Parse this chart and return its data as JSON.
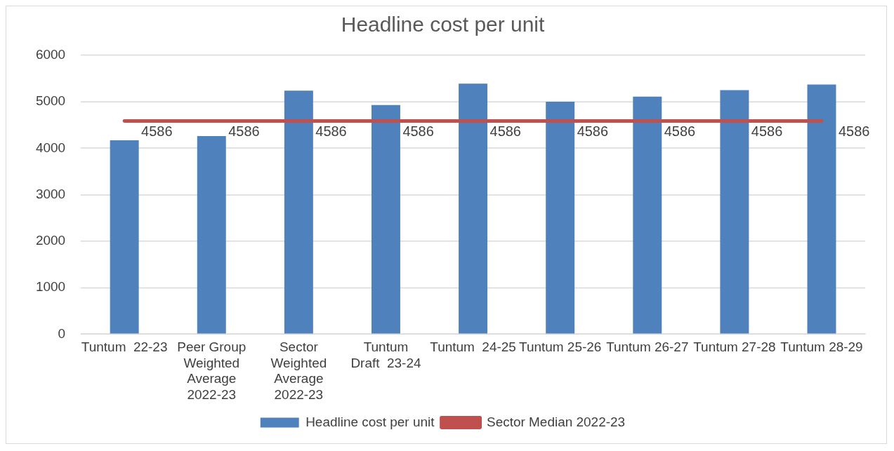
{
  "chart_data": {
    "type": "bar",
    "title": "Headline cost per unit",
    "categories": [
      "Tuntum  22-23",
      "Peer Group Weighted Average 2022-23",
      "Sector Weighted Average 2022-23",
      "Tuntum Draft  23-24",
      "Tuntum  24-25",
      "Tuntum 25-26",
      "Tuntum 26-27",
      "Tuntum 27-28",
      "Tuntum 28-29"
    ],
    "series": [
      {
        "name": "Headline cost per unit",
        "color": "#4f81bd",
        "values": [
          4170,
          4260,
          5240,
          4930,
          5390,
          5000,
          5110,
          5250,
          5370
        ]
      },
      {
        "name": "Sector Median 2022-23",
        "type": "line",
        "color": "#c0504d",
        "values": [
          4586,
          4586,
          4586,
          4586,
          4586,
          4586,
          4586,
          4586,
          4586
        ],
        "value_labels": [
          "4586",
          "4586",
          "4586",
          "4586",
          "4586",
          "4586",
          "4586",
          "4586",
          "4586"
        ]
      }
    ],
    "ylim": [
      0,
      6000
    ],
    "yticks": [
      0,
      1000,
      2000,
      3000,
      4000,
      5000,
      6000
    ],
    "grid": "y",
    "legend": "bottom",
    "marker": "none"
  }
}
